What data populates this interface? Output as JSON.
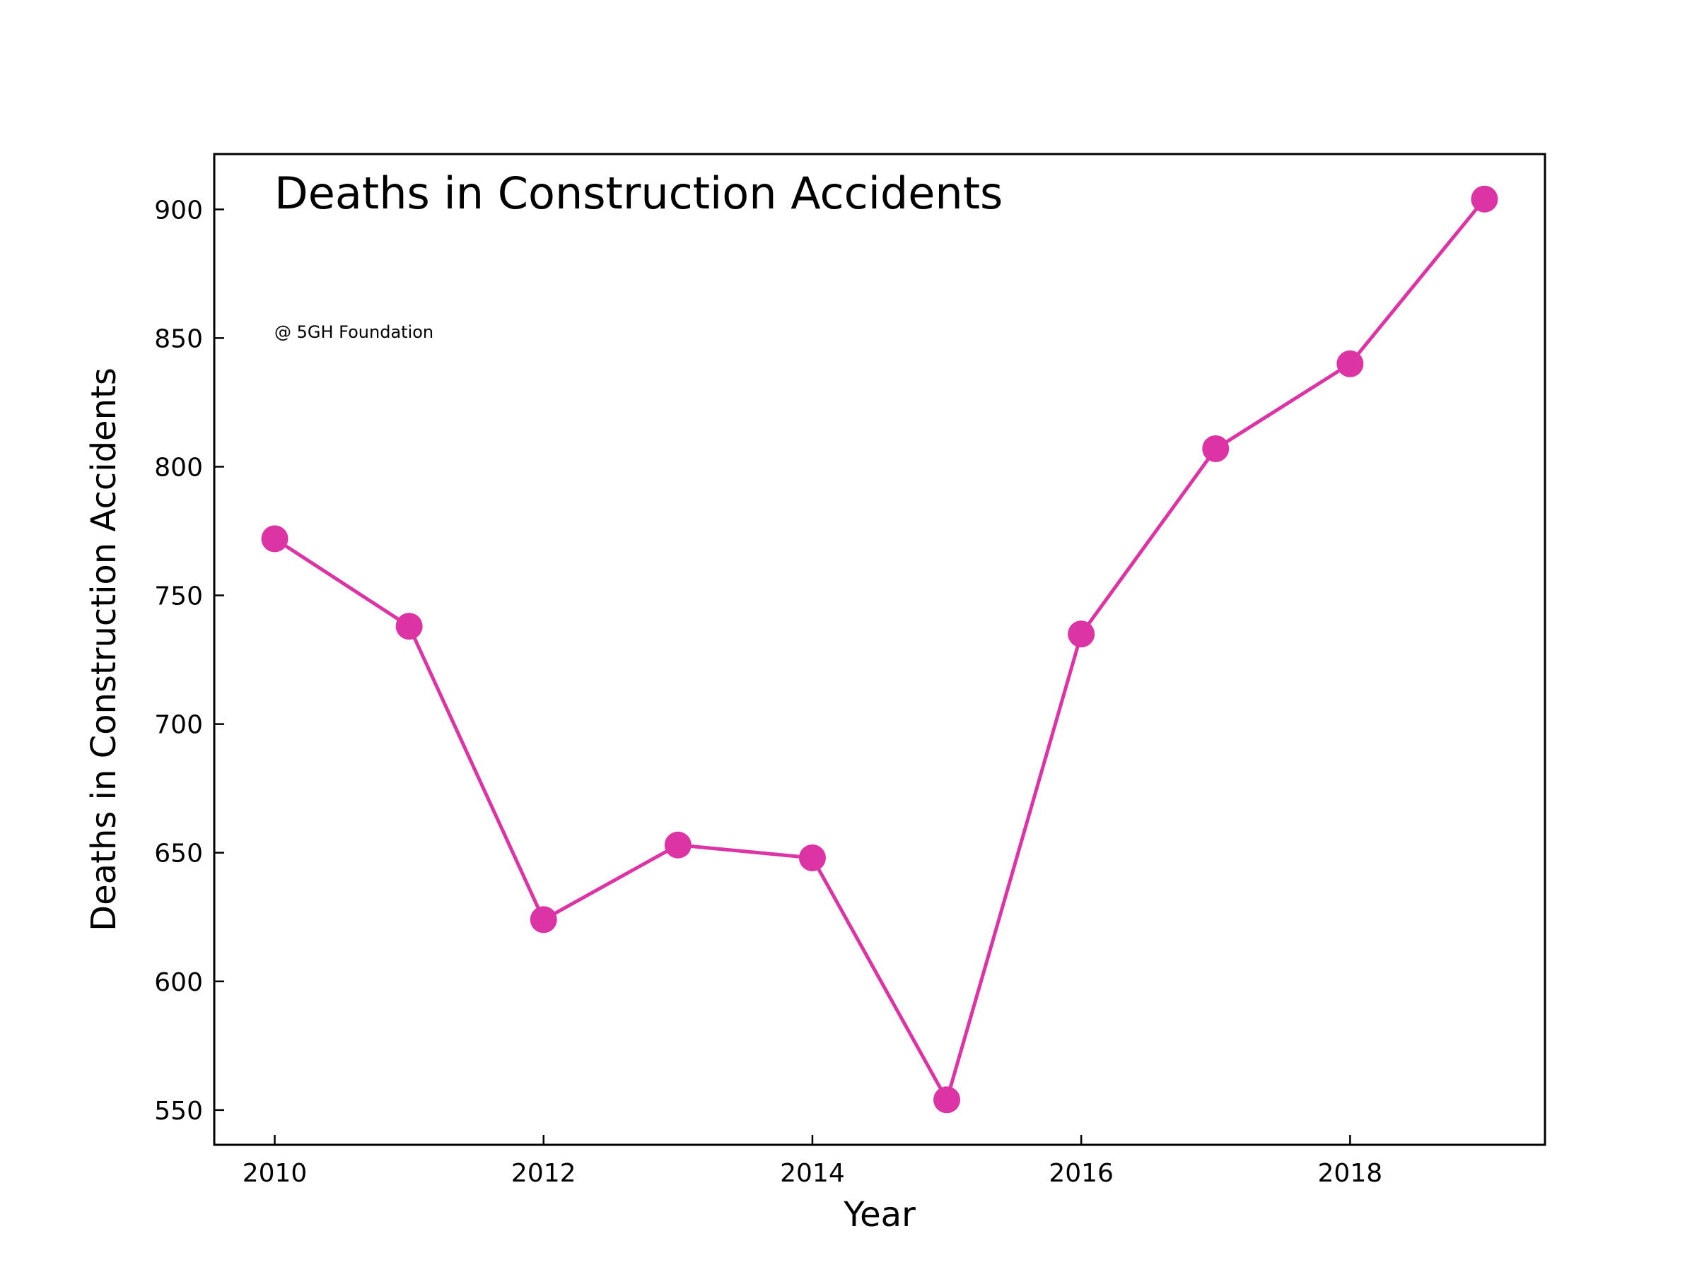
{
  "chart_data": {
    "type": "line",
    "title": "Deaths in Construction Accidents",
    "annotation": "@ 5GH Foundation",
    "xlabel": "Year",
    "ylabel": "Deaths in Construction Accidents",
    "x": [
      2010,
      2011,
      2012,
      2013,
      2014,
      2015,
      2016,
      2017,
      2018,
      2019
    ],
    "series": [
      {
        "values": [
          772,
          738,
          624,
          653,
          648,
          554,
          735,
          807,
          840,
          904
        ],
        "color": "#dd34a5"
      }
    ],
    "xlim": [
      2009.55,
      2019.45
    ],
    "ylim": [
      536.5,
      921.5
    ],
    "xticks": [
      2010,
      2012,
      2014,
      2016,
      2018
    ],
    "yticks": [
      550,
      600,
      650,
      700,
      750,
      800,
      850,
      900
    ],
    "grid": false,
    "legend": false,
    "marker": "circle"
  }
}
